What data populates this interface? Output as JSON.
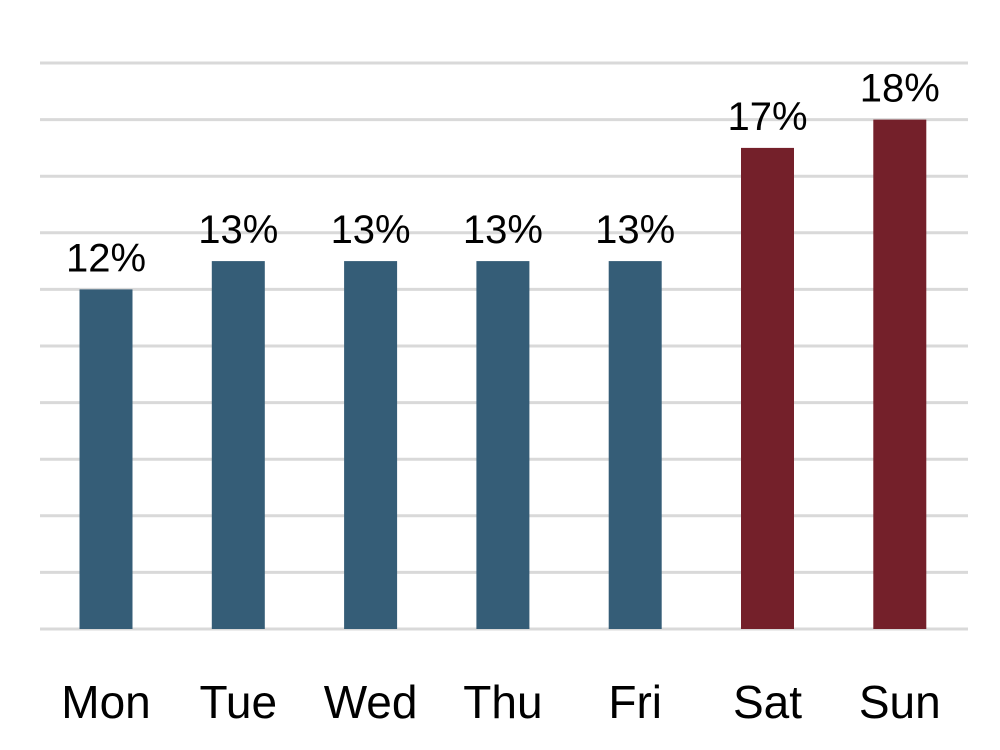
{
  "chart_data": {
    "type": "bar",
    "categories": [
      "Mon",
      "Tue",
      "Wed",
      "Thu",
      "Fri",
      "Sat",
      "Sun"
    ],
    "values": [
      12,
      13,
      13,
      13,
      13,
      17,
      18
    ],
    "data_labels": [
      "12%",
      "13%",
      "13%",
      "13%",
      "13%",
      "17%",
      "18%"
    ],
    "title": "",
    "xlabel": "",
    "ylabel": "",
    "ylim": [
      0,
      20
    ],
    "grid": true,
    "y_axis_labels_shown": false,
    "legend": "none",
    "colors": {
      "weekday": "#355d77",
      "weekend": "#74202a",
      "grid": "#d9d9d9"
    },
    "bar_color_groups": [
      "weekday",
      "weekday",
      "weekday",
      "weekday",
      "weekday",
      "weekend",
      "weekend"
    ]
  }
}
